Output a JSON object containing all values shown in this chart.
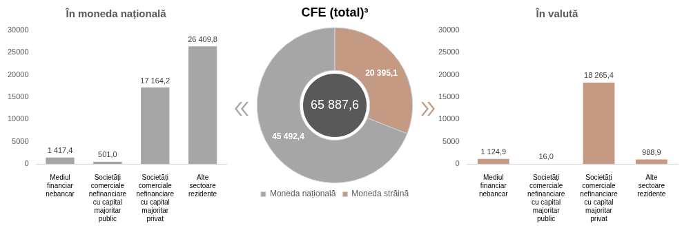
{
  "chart_data": [
    {
      "type": "bar",
      "title": "În moneda națională",
      "categories": [
        "Mediul financiar nebancar",
        "Societăți comerciale nefinanciare cu capital majoritar public",
        "Societăți comerciale nefinanciare cu capital majoritar privat",
        "Alte sectoare rezidente"
      ],
      "values": [
        1417.4,
        501.0,
        17164.2,
        26409.8
      ],
      "color": "#a6a6a6",
      "value_labels": [
        "1 417,4",
        "501,0",
        "17 164,2",
        "26 409,8"
      ],
      "ylim": [
        0,
        30000
      ],
      "yticks": [
        0,
        5000,
        10000,
        15000,
        20000,
        25000,
        30000
      ],
      "grid": false,
      "legend": false
    },
    {
      "type": "donut",
      "title": "CFE (total)³",
      "categories": [
        "Moneda națională",
        "Moneda străină"
      ],
      "values": [
        45492.4,
        20395.1
      ],
      "colors": [
        "#a6a6a6",
        "#c49a82"
      ],
      "value_labels": [
        "45 492,4",
        "20 395,1"
      ],
      "annotations": [
        "65 887,6"
      ],
      "legend": "bottom"
    },
    {
      "type": "bar",
      "title": "În valută",
      "categories": [
        "Mediul financiar nebancar",
        "Societăți comerciale nefinanciare cu capital majoritar public",
        "Societăți comerciale nefinanciare cu capital majoritar privat",
        "Alte sectoare rezidente"
      ],
      "values": [
        1124.9,
        16.0,
        18265.4,
        988.9
      ],
      "color": "#c49a82",
      "value_labels": [
        "1 124,9",
        "16,0",
        "18 265,4",
        "988,9"
      ],
      "ylim": [
        0,
        30000
      ],
      "yticks": [
        0,
        5000,
        10000,
        15000,
        20000,
        25000,
        30000
      ],
      "grid": false,
      "legend": false
    }
  ]
}
